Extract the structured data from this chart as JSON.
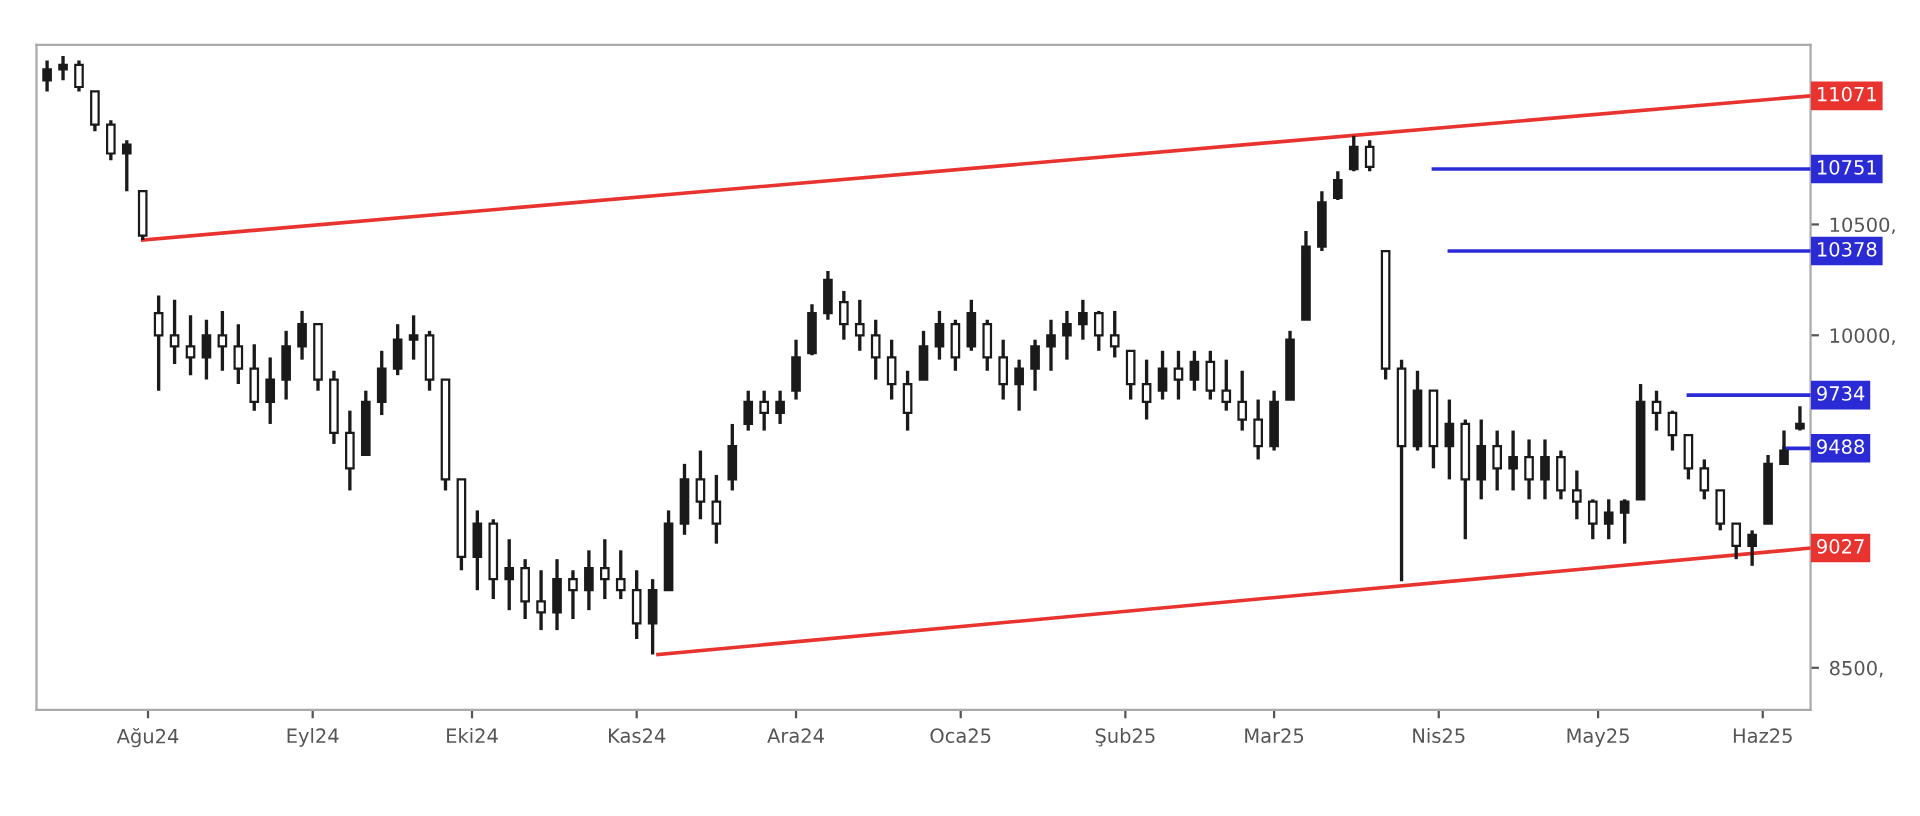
{
  "chart_data": {
    "type": "candlestick",
    "x": [
      "2024-07-13",
      "2024-07-16",
      "2024-07-19",
      "2024-07-22",
      "2024-07-25",
      "2024-07-28",
      "2024-07-31",
      "2024-08-03",
      "2024-08-06",
      "2024-08-09",
      "2024-08-12",
      "2024-08-15",
      "2024-08-18",
      "2024-08-21",
      "2024-08-24",
      "2024-08-27",
      "2024-08-30",
      "2024-09-02",
      "2024-09-05",
      "2024-09-08",
      "2024-09-11",
      "2024-09-14",
      "2024-09-17",
      "2024-09-20",
      "2024-09-23",
      "2024-09-26",
      "2024-09-29",
      "2024-10-02",
      "2024-10-05",
      "2024-10-08",
      "2024-10-11",
      "2024-10-14",
      "2024-10-17",
      "2024-10-20",
      "2024-10-23",
      "2024-10-26",
      "2024-10-29",
      "2024-11-01",
      "2024-11-04",
      "2024-11-07",
      "2024-11-10",
      "2024-11-13",
      "2024-11-16",
      "2024-11-19",
      "2024-11-22",
      "2024-11-25",
      "2024-11-28",
      "2024-12-01",
      "2024-12-04",
      "2024-12-07",
      "2024-12-10",
      "2024-12-13",
      "2024-12-16",
      "2024-12-19",
      "2024-12-22",
      "2024-12-25",
      "2024-12-28",
      "2024-12-31",
      "2025-01-03",
      "2025-01-06",
      "2025-01-09",
      "2025-01-12",
      "2025-01-15",
      "2025-01-18",
      "2025-01-21",
      "2025-01-24",
      "2025-01-27",
      "2025-01-30",
      "2025-02-02",
      "2025-02-05",
      "2025-02-08",
      "2025-02-11",
      "2025-02-14",
      "2025-02-17",
      "2025-02-20",
      "2025-02-23",
      "2025-02-26",
      "2025-03-01",
      "2025-03-04",
      "2025-03-07",
      "2025-03-10",
      "2025-03-13",
      "2025-03-16",
      "2025-03-19",
      "2025-03-22",
      "2025-03-25",
      "2025-03-28",
      "2025-03-31",
      "2025-04-03",
      "2025-04-06",
      "2025-04-09",
      "2025-04-12",
      "2025-04-15",
      "2025-04-18",
      "2025-04-21",
      "2025-04-24",
      "2025-04-27",
      "2025-04-30",
      "2025-05-03",
      "2025-05-06",
      "2025-05-09",
      "2025-05-12",
      "2025-05-15",
      "2025-05-18",
      "2025-05-21",
      "2025-05-24",
      "2025-05-27",
      "2025-05-30",
      "2025-06-02",
      "2025-06-05",
      "2025-06-08"
    ],
    "ohlc": [
      [
        11150,
        11240,
        11100,
        11200
      ],
      [
        11200,
        11260,
        11150,
        11220
      ],
      [
        11220,
        11240,
        11100,
        11120
      ],
      [
        11100,
        11100,
        10920,
        10950
      ],
      [
        10950,
        10970,
        10790,
        10820
      ],
      [
        10820,
        10880,
        10650,
        10860
      ],
      [
        10650,
        10650,
        10430,
        10450
      ],
      [
        10100,
        10180,
        9750,
        10000
      ],
      [
        10000,
        10160,
        9870,
        9950
      ],
      [
        9950,
        10090,
        9820,
        9900
      ],
      [
        9900,
        10070,
        9800,
        10000
      ],
      [
        10000,
        10110,
        9840,
        9950
      ],
      [
        9950,
        10050,
        9780,
        9850
      ],
      [
        9850,
        9960,
        9660,
        9700
      ],
      [
        9700,
        9900,
        9600,
        9800
      ],
      [
        9800,
        10020,
        9710,
        9950
      ],
      [
        9950,
        10110,
        9890,
        10050
      ],
      [
        10050,
        10050,
        9750,
        9800
      ],
      [
        9800,
        9840,
        9510,
        9560
      ],
      [
        9560,
        9660,
        9300,
        9400
      ],
      [
        9460,
        9750,
        9460,
        9700
      ],
      [
        9700,
        9930,
        9640,
        9850
      ],
      [
        9850,
        10050,
        9820,
        9980
      ],
      [
        9980,
        10090,
        9890,
        10000
      ],
      [
        10000,
        10020,
        9750,
        9800
      ],
      [
        9800,
        9800,
        9300,
        9350
      ],
      [
        9350,
        9350,
        8940,
        9000
      ],
      [
        9000,
        9210,
        8850,
        9150
      ],
      [
        9150,
        9170,
        8810,
        8900
      ],
      [
        8900,
        9080,
        8760,
        8950
      ],
      [
        8950,
        8990,
        8720,
        8800
      ],
      [
        8800,
        8940,
        8670,
        8750
      ],
      [
        8750,
        8990,
        8670,
        8900
      ],
      [
        8900,
        8940,
        8720,
        8850
      ],
      [
        8850,
        9030,
        8760,
        8950
      ],
      [
        8950,
        9080,
        8810,
        8900
      ],
      [
        8900,
        9030,
        8810,
        8850
      ],
      [
        8850,
        8940,
        8630,
        8700
      ],
      [
        8700,
        8900,
        8560,
        8850
      ],
      [
        8850,
        9210,
        8850,
        9150
      ],
      [
        9150,
        9420,
        9100,
        9350
      ],
      [
        9350,
        9480,
        9170,
        9250
      ],
      [
        9250,
        9370,
        9060,
        9150
      ],
      [
        9350,
        9600,
        9300,
        9500
      ],
      [
        9600,
        9750,
        9570,
        9700
      ],
      [
        9700,
        9750,
        9570,
        9650
      ],
      [
        9650,
        9750,
        9600,
        9700
      ],
      [
        9750,
        9980,
        9710,
        9900
      ],
      [
        9920,
        10140,
        9910,
        10100
      ],
      [
        10100,
        10290,
        10070,
        10250
      ],
      [
        10150,
        10200,
        9980,
        10050
      ],
      [
        10050,
        10160,
        9930,
        10000
      ],
      [
        10000,
        10070,
        9800,
        9900
      ],
      [
        9900,
        9980,
        9710,
        9780
      ],
      [
        9780,
        9840,
        9570,
        9650
      ],
      [
        9800,
        10020,
        9800,
        9950
      ],
      [
        9950,
        10110,
        9890,
        10050
      ],
      [
        10050,
        10070,
        9840,
        9900
      ],
      [
        9950,
        10160,
        9930,
        10100
      ],
      [
        10050,
        10070,
        9840,
        9900
      ],
      [
        9900,
        9980,
        9710,
        9780
      ],
      [
        9780,
        9890,
        9660,
        9850
      ],
      [
        9850,
        9980,
        9750,
        9950
      ],
      [
        9950,
        10070,
        9840,
        10000
      ],
      [
        10000,
        10110,
        9890,
        10050
      ],
      [
        10050,
        10160,
        9980,
        10100
      ],
      [
        10100,
        10110,
        9930,
        10000
      ],
      [
        10000,
        10110,
        9900,
        9950
      ],
      [
        9930,
        9930,
        9710,
        9780
      ],
      [
        9780,
        9890,
        9620,
        9700
      ],
      [
        9750,
        9930,
        9710,
        9850
      ],
      [
        9850,
        9930,
        9710,
        9800
      ],
      [
        9800,
        9930,
        9750,
        9880
      ],
      [
        9880,
        9930,
        9710,
        9750
      ],
      [
        9750,
        9890,
        9660,
        9700
      ],
      [
        9700,
        9840,
        9570,
        9620
      ],
      [
        9620,
        9710,
        9440,
        9500
      ],
      [
        9500,
        9750,
        9480,
        9700
      ],
      [
        9710,
        10020,
        9710,
        9980
      ],
      [
        10070,
        10470,
        10070,
        10400
      ],
      [
        10400,
        10650,
        10380,
        10600
      ],
      [
        10620,
        10740,
        10610,
        10700
      ],
      [
        10750,
        10900,
        10740,
        10850
      ],
      [
        10850,
        10880,
        10740,
        10760
      ],
      [
        10380,
        10380,
        9800,
        9850
      ],
      [
        9850,
        9890,
        8890,
        9500
      ],
      [
        9500,
        9840,
        9480,
        9750
      ],
      [
        9750,
        9750,
        9400,
        9500
      ],
      [
        9500,
        9710,
        9350,
        9600
      ],
      [
        9600,
        9620,
        9080,
        9350
      ],
      [
        9350,
        9620,
        9260,
        9500
      ],
      [
        9500,
        9570,
        9300,
        9400
      ],
      [
        9400,
        9570,
        9300,
        9450
      ],
      [
        9450,
        9530,
        9260,
        9350
      ],
      [
        9350,
        9530,
        9260,
        9450
      ],
      [
        9450,
        9480,
        9260,
        9300
      ],
      [
        9300,
        9390,
        9170,
        9250
      ],
      [
        9250,
        9260,
        9080,
        9150
      ],
      [
        9150,
        9260,
        9080,
        9200
      ],
      [
        9200,
        9260,
        9060,
        9250
      ],
      [
        9260,
        9780,
        9260,
        9700
      ],
      [
        9700,
        9750,
        9570,
        9650
      ],
      [
        9650,
        9660,
        9480,
        9550
      ],
      [
        9550,
        9550,
        9350,
        9400
      ],
      [
        9400,
        9440,
        9260,
        9300
      ],
      [
        9300,
        9300,
        9120,
        9150
      ],
      [
        9150,
        9150,
        8990,
        9050
      ],
      [
        9050,
        9120,
        8960,
        9100
      ],
      [
        9150,
        9460,
        9150,
        9420
      ],
      [
        9420,
        9570,
        9420,
        9480
      ],
      [
        9580,
        9680,
        9570,
        9600
      ]
    ],
    "color": "#1a1a1a",
    "series": [
      {
        "type": "line",
        "name": "11071",
        "color": "#e8332f",
        "x": [
          "2024-07-31",
          "2025-06-10"
        ],
        "values": [
          10430,
          11080
        ]
      },
      {
        "type": "line",
        "name": "9027",
        "color": "#e8332f",
        "x": [
          "2024-11-05",
          "2025-06-10"
        ],
        "values": [
          8560,
          9040
        ]
      },
      {
        "type": "line",
        "name": "10751",
        "color": "#2b2bd6",
        "x": [
          "2025-03-31",
          "2025-06-10"
        ],
        "values": [
          10750,
          10750
        ]
      },
      {
        "type": "line",
        "name": "10378",
        "color": "#2b2bd6",
        "x": [
          "2025-04-03",
          "2025-06-10"
        ],
        "values": [
          10380,
          10380
        ]
      },
      {
        "type": "line",
        "name": "9734",
        "color": "#2b2bd6",
        "x": [
          "2025-05-18",
          "2025-06-10"
        ],
        "values": [
          9730,
          9730
        ]
      },
      {
        "type": "line",
        "name": "9488",
        "color": "#2b2bd6",
        "x": [
          "2025-06-05",
          "2025-06-10"
        ],
        "values": [
          9490,
          9490
        ]
      }
    ],
    "xlim": [
      "2024-07-11",
      "2025-06-10"
    ],
    "xticks": [
      {
        "value": "2024-08-01",
        "label": "Ağu24"
      },
      {
        "value": "2024-09-01",
        "label": "Eyl24"
      },
      {
        "value": "2024-10-01",
        "label": "Eki24"
      },
      {
        "value": "2024-11-01",
        "label": "Kas24"
      },
      {
        "value": "2024-12-01",
        "label": "Ara24"
      },
      {
        "value": "2025-01-01",
        "label": "Oca25"
      },
      {
        "value": "2025-02-01",
        "label": "Şub25"
      },
      {
        "value": "2025-03-01",
        "label": "Mar25"
      },
      {
        "value": "2025-04-01",
        "label": "Nis25"
      },
      {
        "value": "2025-05-01",
        "label": "May25"
      },
      {
        "value": "2025-06-01",
        "label": "Haz25"
      }
    ],
    "ylim": [
      8310,
      11310
    ],
    "yticks": [
      {
        "value": 8500,
        "label": "8500,"
      },
      {
        "value": 10000,
        "label": "10000,"
      },
      {
        "value": 10500,
        "label": "10500,"
      }
    ],
    "grid": false,
    "legend": false
  }
}
